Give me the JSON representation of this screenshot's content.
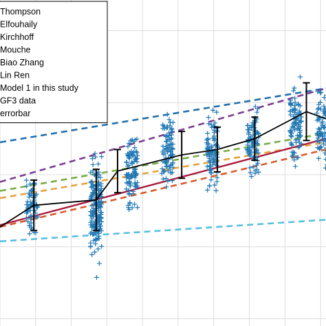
{
  "chart_data": {
    "type": "scatter",
    "title": "",
    "xlabel": "",
    "ylabel": "",
    "xlim": [
      0,
      9.15
    ],
    "ylim": [
      0,
      9.05
    ],
    "grid": true,
    "legend_position": "top-left",
    "x_gridlines": [
      0,
      1,
      2,
      3,
      4,
      5,
      6,
      7,
      8,
      9
    ],
    "y_gridlines": [
      0.2,
      2.2,
      4.2,
      6.2,
      8.2,
      10.2
    ],
    "dashed_series": [
      {
        "name": "Thompson",
        "color": "#1f6fad",
        "x": [
          0,
          9.15
        ],
        "y": [
          5.1,
          6.6
        ]
      },
      {
        "name": "Elfouhaily",
        "color": "#7b3d93",
        "x": [
          0,
          9.15
        ],
        "y": [
          4.0,
          6.6
        ]
      },
      {
        "name": "Kirchhoff",
        "color": "#77ab43",
        "x": [
          0,
          9.15
        ],
        "y": [
          3.75,
          5.35
        ]
      },
      {
        "name": "Mouche",
        "color": "#e8a13c",
        "x": [
          0,
          9.15
        ],
        "y": [
          3.55,
          5.1
        ]
      },
      {
        "name": "Lin Ren",
        "color": "#d9592b",
        "x": [
          0,
          9.15
        ],
        "y": [
          2.75,
          4.9
        ]
      },
      {
        "name": "Biao Zhang",
        "color": "#56bfe0",
        "x": [
          0,
          9.15
        ],
        "y": [
          2.35,
          2.95
        ]
      }
    ],
    "solid_series": [
      {
        "name": "Model 1 in this study",
        "color": "#a81a3c",
        "x": [
          0,
          9.15
        ],
        "y": [
          2.8,
          5.2
        ]
      }
    ],
    "gf3_data": {
      "name": "GF3 data",
      "color": "#1f77b4",
      "groups": [
        {
          "x": 0.9,
          "center": 3.3,
          "spread": 0.6,
          "n": 60
        },
        {
          "x": 2.7,
          "center": 3.3,
          "spread": 0.9,
          "n": 170
        },
        {
          "x": 3.7,
          "center": 4.3,
          "spread": 0.8,
          "n": 90
        },
        {
          "x": 4.7,
          "center": 4.8,
          "spread": 0.65,
          "n": 90
        },
        {
          "x": 5.95,
          "center": 4.85,
          "spread": 0.7,
          "n": 90
        },
        {
          "x": 7.1,
          "center": 5.15,
          "spread": 0.55,
          "n": 90
        },
        {
          "x": 8.3,
          "center": 5.6,
          "spread": 0.7,
          "n": 90
        },
        {
          "x": 9.05,
          "center": 5.5,
          "spread": 0.75,
          "n": 80
        }
      ]
    },
    "errorbar": {
      "name": "errorbar",
      "color": "#000000",
      "x": [
        0,
        0.95,
        2.7,
        3.3,
        5.1,
        6.1,
        7.15,
        8.6,
        9.15
      ],
      "y": [
        2.75,
        3.35,
        3.5,
        4.3,
        4.75,
        4.9,
        5.2,
        5.95,
        5.75
      ],
      "err": [
        0,
        0.7,
        0.85,
        0.6,
        0.65,
        0.62,
        0.6,
        0.8,
        0
      ]
    },
    "legend_entries": [
      {
        "label": "Thompson",
        "color": "#1f6fad"
      },
      {
        "label": "Elfouhaily",
        "color": "#7b3d93"
      },
      {
        "label": "Kirchhoff",
        "color": "#77ab43"
      },
      {
        "label": "Mouche",
        "color": "#e8a13c"
      },
      {
        "label": "Biao Zhang",
        "color": "#56bfe0"
      },
      {
        "label": "Lin Ren",
        "color": "#d9592b"
      },
      {
        "label": "Model 1 in this study",
        "color": "#a81a3c"
      },
      {
        "label": "GF3 data",
        "color": "#1f77b4"
      },
      {
        "label": "errorbar",
        "color": "#000000"
      }
    ]
  }
}
